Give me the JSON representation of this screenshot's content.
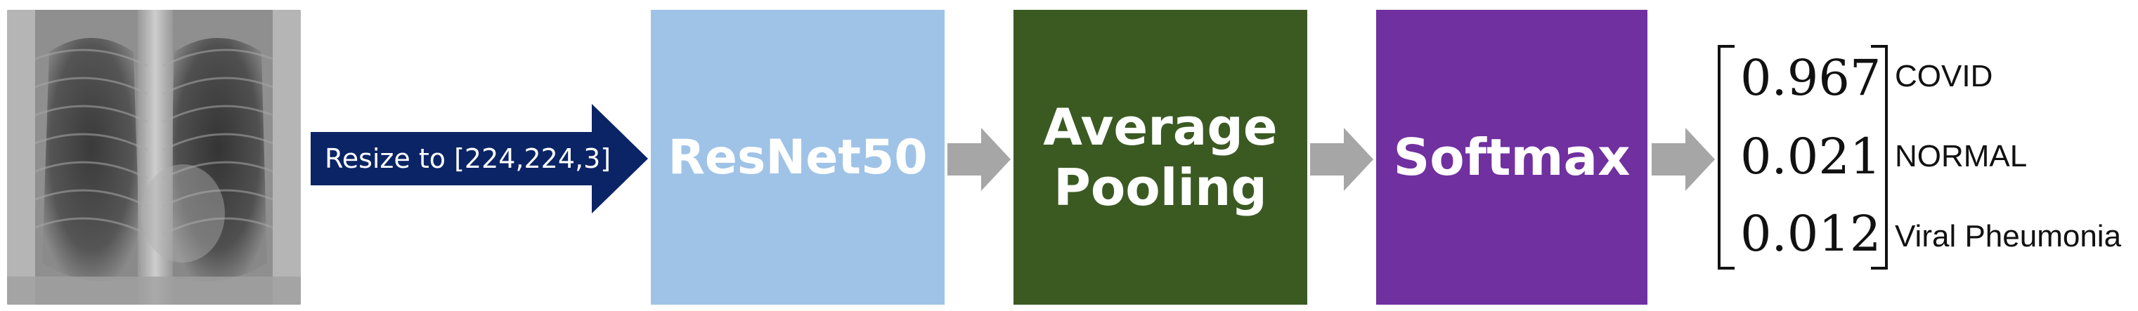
{
  "input_image": {
    "description_icon": "chest-xray-image"
  },
  "resize_arrow": {
    "label": "Resize to [224,224,3]",
    "color": "#0b2466"
  },
  "blocks": {
    "resnet": {
      "label": "ResNet50",
      "color": "#9fc3e7"
    },
    "pooling": {
      "line1": "Average",
      "line2": "Pooling",
      "color": "#3a5a22"
    },
    "softmax": {
      "label": "Softmax",
      "color": "#7030a0"
    }
  },
  "connector_color": "#a6a6a6",
  "output": {
    "values": [
      "0.967",
      "0.021",
      "0.012"
    ],
    "classes": [
      "COVID",
      "NORMAL",
      "Viral Pheumonia"
    ]
  }
}
